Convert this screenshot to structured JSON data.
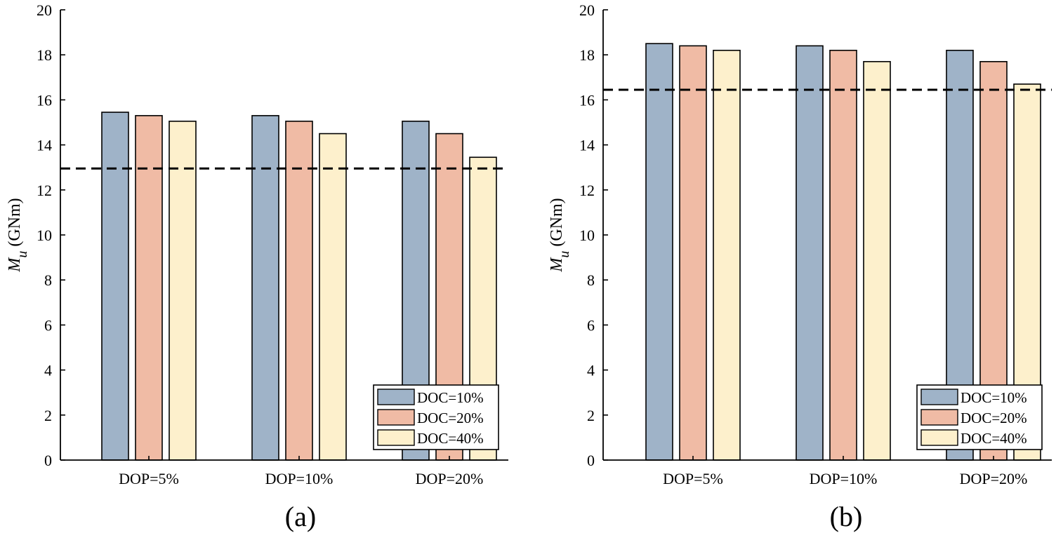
{
  "chart_data": [
    {
      "type": "bar",
      "panel_label": "(a)",
      "ylabel_symbol": "M",
      "ylabel_subscript": "u",
      "ylabel_unit": "(GNm)",
      "ylim": [
        0,
        20
      ],
      "yticks": [
        0,
        2,
        4,
        6,
        8,
        10,
        12,
        14,
        16,
        18,
        20
      ],
      "categories": [
        "DOP=5%",
        "DOP=10%",
        "DOP=20%"
      ],
      "series": [
        {
          "name": "DOC=10%",
          "color": "#9fb3c8",
          "values": [
            15.45,
            15.3,
            15.05
          ]
        },
        {
          "name": "DOC=20%",
          "color": "#f0bba5",
          "values": [
            15.3,
            15.05,
            14.5
          ]
        },
        {
          "name": "DOC=40%",
          "color": "#fdf0cc",
          "values": [
            15.05,
            14.5,
            13.45
          ]
        }
      ],
      "reference_line": 12.95,
      "legend_position": "bottom-right",
      "grid": false
    },
    {
      "type": "bar",
      "panel_label": "(b)",
      "ylabel_symbol": "M",
      "ylabel_subscript": "u",
      "ylabel_unit": "(GNm)",
      "ylim": [
        0,
        20
      ],
      "yticks": [
        0,
        2,
        4,
        6,
        8,
        10,
        12,
        14,
        16,
        18,
        20
      ],
      "categories": [
        "DOP=5%",
        "DOP=10%",
        "DOP=20%"
      ],
      "series": [
        {
          "name": "DOC=10%",
          "color": "#9fb3c8",
          "values": [
            18.5,
            18.4,
            18.2
          ]
        },
        {
          "name": "DOC=20%",
          "color": "#f0bba5",
          "values": [
            18.4,
            18.2,
            17.7
          ]
        },
        {
          "name": "DOC=40%",
          "color": "#fdf0cc",
          "values": [
            18.2,
            17.7,
            16.7
          ]
        }
      ],
      "reference_line": 16.45,
      "legend_position": "bottom-right",
      "grid": false
    }
  ]
}
